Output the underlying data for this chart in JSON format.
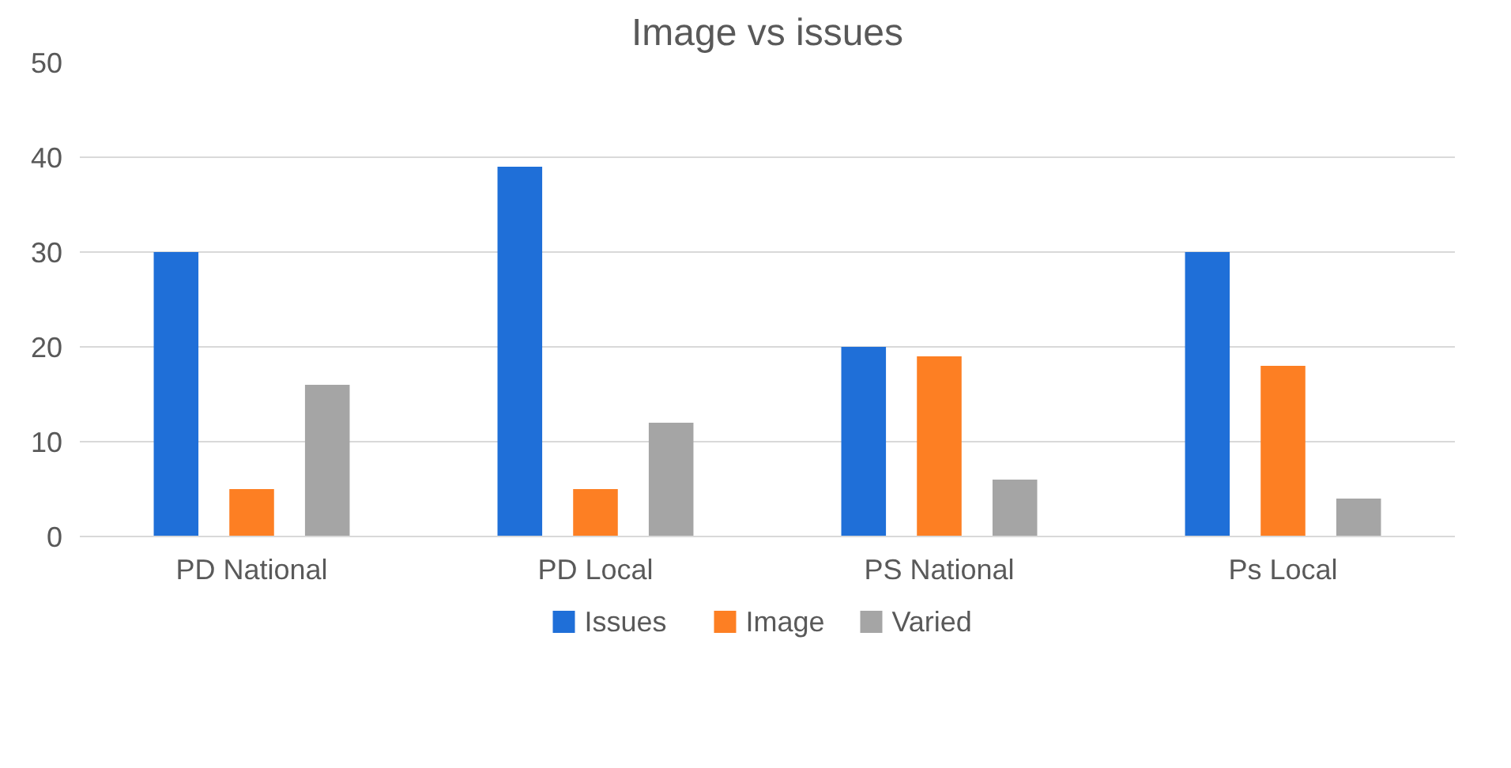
{
  "chart_data": {
    "type": "bar",
    "title": "Image vs issues",
    "categories": [
      "PD National",
      "PD Local",
      "PS National",
      "Ps Local"
    ],
    "series": [
      {
        "name": "Issues",
        "color": "#1f6fd8",
        "values": [
          30,
          39,
          20,
          30
        ]
      },
      {
        "name": "Image",
        "color": "#fd7f23",
        "values": [
          5,
          5,
          19,
          18
        ]
      },
      {
        "name": "Varied",
        "color": "#a5a5a5",
        "values": [
          16,
          12,
          6,
          4
        ]
      }
    ],
    "ylim": [
      0,
      50
    ],
    "yticks": [
      0,
      10,
      20,
      30,
      40,
      50
    ],
    "grid": "y",
    "legend": "bottom"
  }
}
